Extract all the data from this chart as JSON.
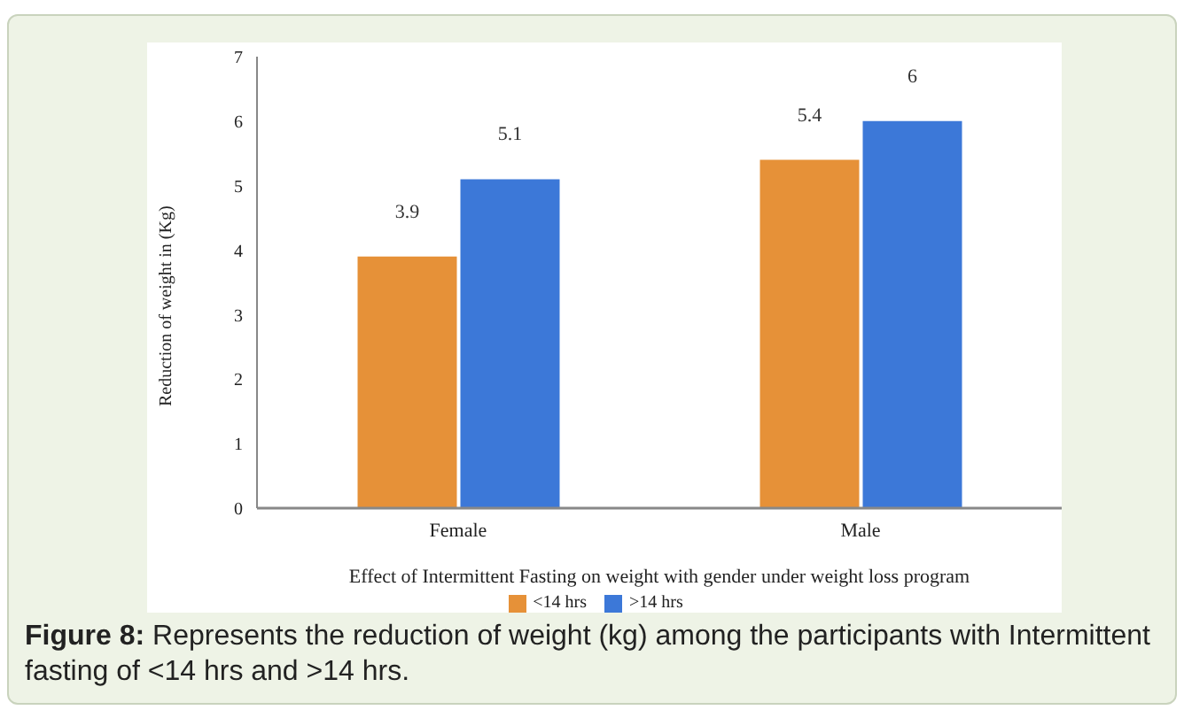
{
  "chart_data": {
    "type": "bar",
    "categories": [
      "Female",
      "Male"
    ],
    "series": [
      {
        "name": "<14 hrs",
        "color": "#e69138",
        "values": [
          3.9,
          5.4
        ]
      },
      {
        "name": ">14 hrs",
        "color": "#3c78d8",
        "values": [
          5.1,
          6
        ]
      }
    ],
    "xlabel": "Effect of Intermittent Fasting on weight with gender under weight loss program",
    "ylabel": "Reduction of weight in (Kg)",
    "ylim": [
      0,
      7
    ],
    "yticks": [
      0,
      1,
      2,
      3,
      4,
      5,
      6,
      7
    ],
    "grid": false,
    "legend": "bottom",
    "data_labels": true,
    "annotations": [
      "Figure 8:",
      "Represents the reduction of weight (kg) among the participants with Intermittent fasting of <14 hrs and >14 hrs."
    ]
  }
}
